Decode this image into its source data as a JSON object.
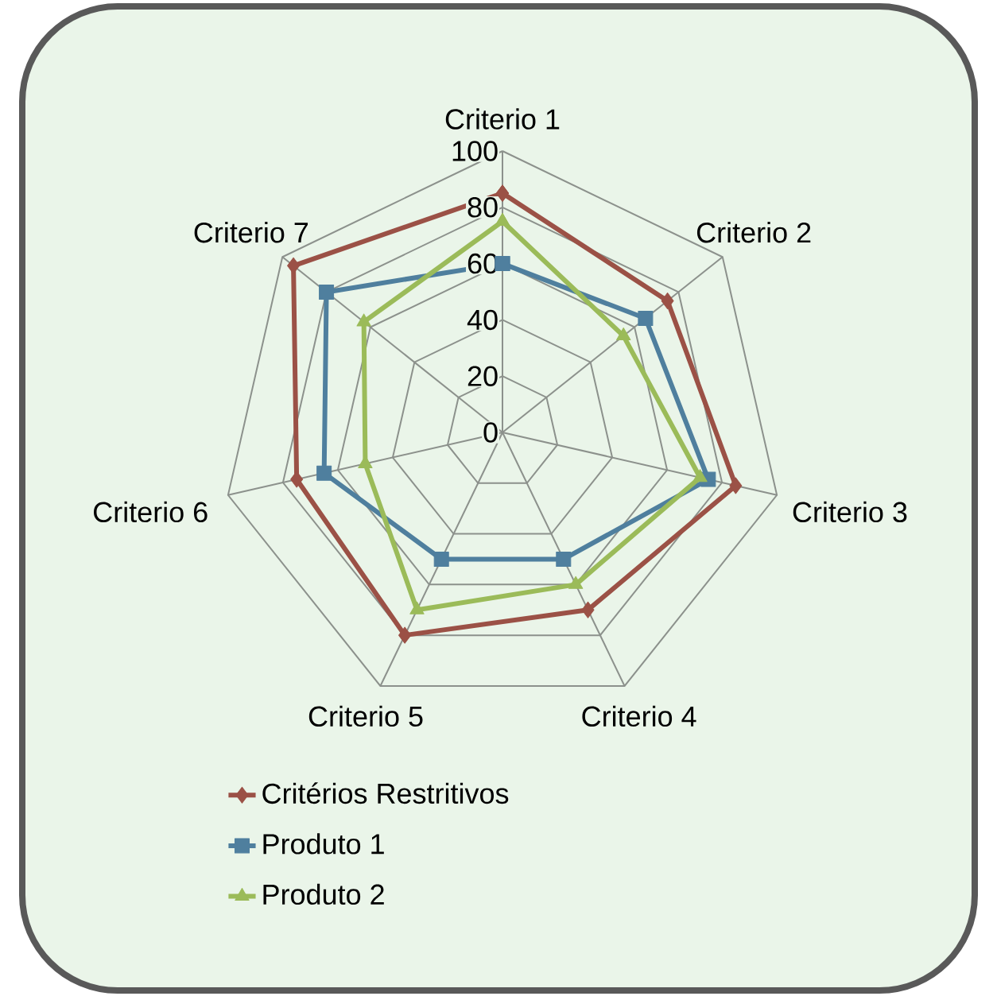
{
  "chart_data": {
    "type": "radar",
    "categories": [
      "Criterio 1",
      "Criterio 2",
      "Criterio 3",
      "Criterio 4",
      "Criterio 5",
      "Criterio 6",
      "Criterio 7"
    ],
    "series": [
      {
        "name": "Critérios Restritivos",
        "color": "#9b5146",
        "marker": "diamond",
        "values": [
          85,
          75,
          85,
          70,
          80,
          75,
          95
        ]
      },
      {
        "name": "Produto 1",
        "color": "#4f7f9e",
        "marker": "square",
        "values": [
          60,
          65,
          75,
          50,
          50,
          65,
          80
        ]
      },
      {
        "name": "Produto 2",
        "color": "#9bbb59",
        "marker": "triangle",
        "values": [
          75,
          55,
          72,
          60,
          70,
          50,
          63
        ]
      }
    ],
    "ylim": [
      0,
      100
    ],
    "yticks": [
      0,
      20,
      40,
      60,
      80,
      100
    ],
    "grid": true,
    "legend": "bottom"
  }
}
